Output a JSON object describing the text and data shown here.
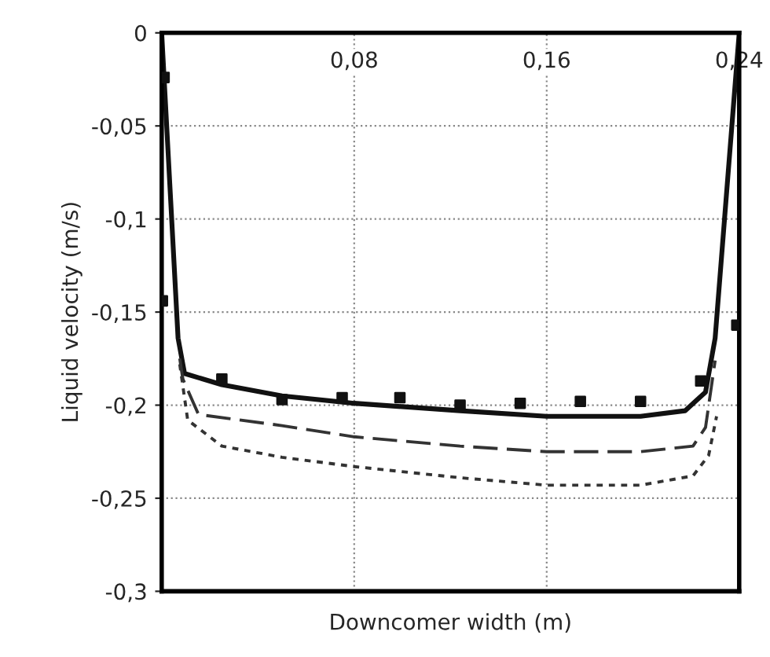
{
  "chart_data": {
    "type": "line",
    "xlabel": "Downcomer width (m)",
    "ylabel": "Liquid velocity (m/s)",
    "xlim": [
      0,
      0.24
    ],
    "ylim": [
      -0.3,
      0
    ],
    "xticks": [
      {
        "value": 0.08,
        "label": "0,08"
      },
      {
        "value": 0.16,
        "label": "0,16"
      },
      {
        "value": 0.24,
        "label": "0,24"
      }
    ],
    "yticks": [
      {
        "value": -0.3,
        "label": "-0,3"
      },
      {
        "value": -0.25,
        "label": "-0,25"
      },
      {
        "value": -0.2,
        "label": "-0,2"
      },
      {
        "value": -0.15,
        "label": "-0,15"
      },
      {
        "value": -0.1,
        "label": "-0,1"
      },
      {
        "value": -0.05,
        "label": "-0,05"
      },
      0
    ],
    "grid": true,
    "series": [
      {
        "line_style": "solid",
        "color": "#111111",
        "x": [
          0,
          0.0068,
          0.0095,
          0.025,
          0.05,
          0.08,
          0.124,
          0.16,
          0.199,
          0.2175,
          0.226,
          0.23,
          0.2339,
          0.24
        ],
        "values": [
          0,
          -0.164,
          -0.183,
          -0.189,
          -0.195,
          -0.199,
          -0.203,
          -0.206,
          -0.206,
          -0.203,
          -0.193,
          -0.164,
          -0.1,
          0
        ]
      },
      {
        "line_style": "dashed",
        "color": "#333333",
        "x": [
          0.0075,
          0.0088,
          0.0153,
          0.05,
          0.08,
          0.124,
          0.16,
          0.199,
          0.2208,
          0.226,
          0.23
        ],
        "values": [
          -0.175,
          -0.186,
          -0.205,
          -0.211,
          -0.217,
          -0.222,
          -0.225,
          -0.225,
          -0.222,
          -0.212,
          -0.176
        ]
      },
      {
        "line_style": "dotted",
        "color": "#333333",
        "x": [
          0.0075,
          0.0108,
          0.025,
          0.05,
          0.08,
          0.124,
          0.16,
          0.199,
          0.2208,
          0.2273,
          0.2306
        ],
        "values": [
          -0.178,
          -0.208,
          -0.222,
          -0.228,
          -0.233,
          -0.239,
          -0.243,
          -0.243,
          -0.238,
          -0.227,
          -0.206
        ]
      },
      {
        "type": "scatter",
        "marker": "square",
        "color": "#111111",
        "x": [
          0.001,
          0.0003,
          0.025,
          0.05,
          0.075,
          0.099,
          0.124,
          0.149,
          0.174,
          0.199,
          0.224,
          0.239
        ],
        "values": [
          -0.024,
          -0.144,
          -0.186,
          -0.197,
          -0.196,
          -0.196,
          -0.2,
          -0.199,
          -0.198,
          -0.198,
          -0.187,
          -0.157
        ]
      }
    ]
  }
}
